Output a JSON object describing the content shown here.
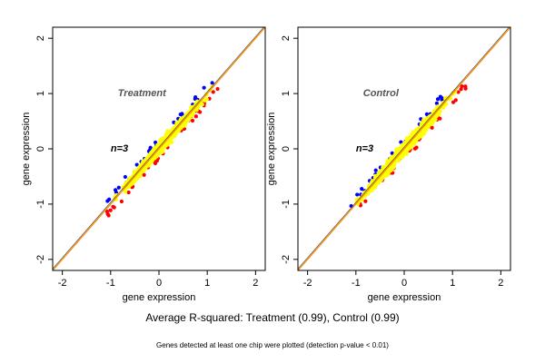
{
  "chart_data": [
    {
      "type": "scatter",
      "title": "Treatment",
      "annotation": "n=3",
      "xlabel": "gene expression",
      "ylabel": "gene expression",
      "xlim": [
        -2.2,
        2.2
      ],
      "ylim": [
        -2.2,
        2.2
      ],
      "xticks": [
        -2,
        -1,
        0,
        1,
        2
      ],
      "yticks": [
        -2,
        -1,
        0,
        1,
        2
      ],
      "point_range": [
        -1.15,
        1.2
      ],
      "spread": 0.08,
      "colors": {
        "main": "#ffff00",
        "series_a": "#0000ff",
        "series_b": "#ff0000",
        "diagonal": "#ff8c00",
        "fit": "#333333"
      }
    },
    {
      "type": "scatter",
      "title": "Control",
      "annotation": "n=3",
      "xlabel": "gene expression",
      "ylabel": "gene expression",
      "xlim": [
        -2.2,
        2.2
      ],
      "ylim": [
        -2.2,
        2.2
      ],
      "xticks": [
        -2,
        -1,
        0,
        1,
        2
      ],
      "yticks": [
        -2,
        -1,
        0,
        1,
        2
      ],
      "point_range": [
        -1.15,
        1.2
      ],
      "spread": 0.09,
      "colors": {
        "main": "#ffff00",
        "series_a": "#0000ff",
        "series_b": "#ff0000",
        "diagonal": "#ff8c00",
        "fit": "#333333"
      }
    }
  ],
  "caption_main": "Average R-squared: Treatment (0.99), Control (0.99)",
  "caption_sub": "Genes detected at least one chip were plotted (detection p-value < 0.01)"
}
